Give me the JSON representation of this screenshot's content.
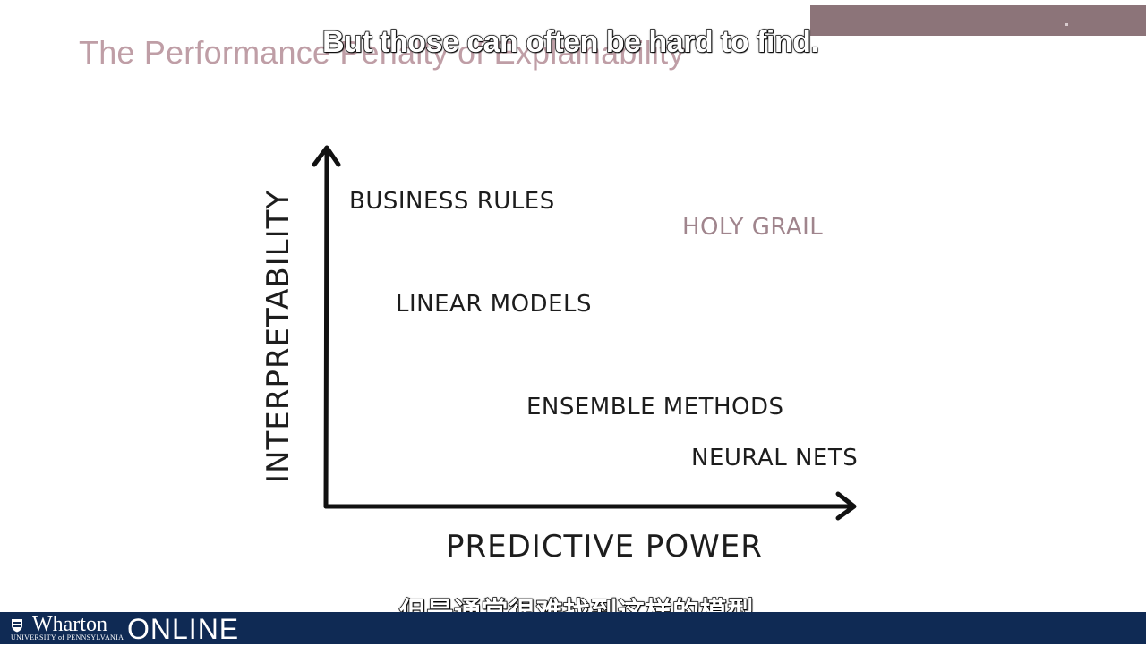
{
  "slide": {
    "title": "The Performance Penalty of Explainability"
  },
  "subtitles": {
    "english": "But those can often be hard to find.",
    "chinese": "但是通常很难找到这样的模型。"
  },
  "diagram": {
    "y_axis_label": "INTERPRETABILITY",
    "x_axis_label": "PREDICTIVE POWER",
    "items": [
      {
        "label": "BUSINESS RULES"
      },
      {
        "label": "HOLY GRAIL"
      },
      {
        "label": "LINEAR MODELS"
      },
      {
        "label": "ENSEMBLE METHODS"
      },
      {
        "label": "NEURAL NETS"
      }
    ],
    "colors": {
      "ink": "#1d1d1d",
      "holy_grail": "#a0858d"
    }
  },
  "footer": {
    "brand": "Wharton",
    "university": "UNIVERSITY of PENNSYLVANIA",
    "online": "ONLINE",
    "background": "#0f2a54"
  }
}
